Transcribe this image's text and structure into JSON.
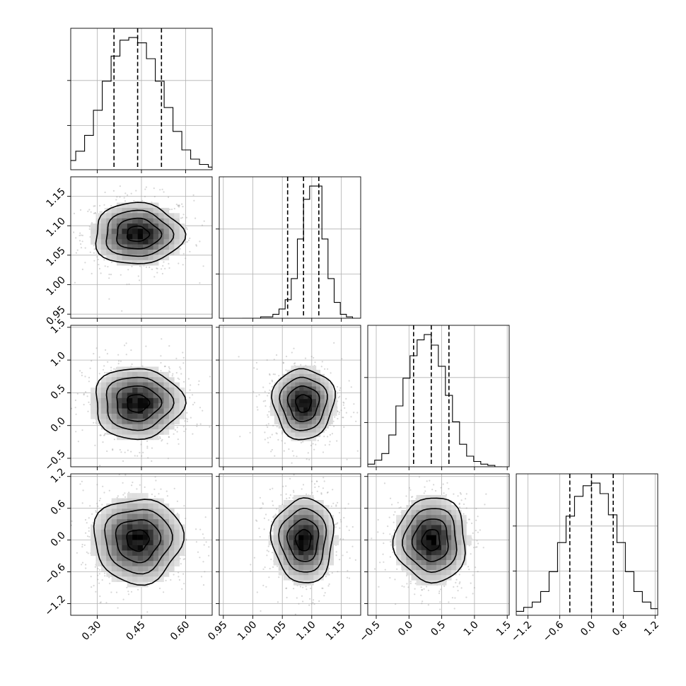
{
  "chart_data": {
    "type": "corner",
    "parameters": 4,
    "grid": true,
    "quantile_lines": "dashed",
    "axes": [
      {
        "range": [
          0.21,
          0.69
        ],
        "ticks": [
          0.3,
          0.45,
          0.6
        ],
        "tick_labels": [
          "0.30",
          "0.45",
          "0.60"
        ]
      },
      {
        "range": [
          0.943,
          1.183
        ],
        "ticks": [
          0.95,
          1.0,
          1.05,
          1.1,
          1.15
        ],
        "tick_labels": [
          "0.95",
          "1.00",
          "1.05",
          "1.10",
          "1.15"
        ]
      },
      {
        "range": [
          -0.63,
          1.53
        ],
        "ticks": [
          -0.5,
          0.0,
          0.5,
          1.0,
          1.5
        ],
        "tick_labels": [
          "−0.5",
          "0.0",
          "0.5",
          "1.0",
          "1.5"
        ]
      },
      {
        "range": [
          -1.42,
          1.25
        ],
        "ticks": [
          -1.2,
          -0.6,
          0.0,
          0.6,
          1.2
        ],
        "tick_labels": [
          "−1.2",
          "−0.6",
          "0.0",
          "0.6",
          "1.2"
        ]
      }
    ],
    "distributions": [
      {
        "mean": 0.437,
        "std": 0.075,
        "quantiles": [
          0.357,
          0.437,
          0.518
        ]
      },
      {
        "mean": 1.086,
        "std": 0.026,
        "quantiles": [
          1.059,
          1.086,
          1.112
        ]
      },
      {
        "mean": 0.34,
        "std": 0.27,
        "quantiles": [
          0.07,
          0.34,
          0.61
        ]
      },
      {
        "mean": 0.0,
        "std": 0.4,
        "quantiles": [
          -0.41,
          0.0,
          0.41
        ]
      }
    ],
    "histograms": [
      {
        "bins": 20,
        "counts": [
          1,
          3,
          7,
          14,
          26,
          45,
          67,
          86,
          98,
          100,
          96,
          84,
          67,
          47,
          29,
          15,
          8,
          4,
          2,
          1
        ]
      },
      {
        "bins": 20,
        "counts": [
          0,
          0,
          0,
          1,
          1,
          3,
          7,
          14,
          30,
          60,
          90,
          100,
          100,
          60,
          30,
          12,
          3,
          1,
          0,
          0
        ]
      },
      {
        "bins": 20,
        "counts": [
          1,
          2,
          5,
          10,
          24,
          46,
          67,
          84,
          96,
          100,
          92,
          76,
          54,
          34,
          17,
          8,
          4,
          2,
          1,
          0
        ]
      },
      {
        "bins": 20,
        "counts": [
          1,
          3,
          6,
          10,
          18,
          33,
          55,
          75,
          90,
          98,
          100,
          92,
          76,
          55,
          33,
          18,
          10,
          5,
          3,
          1
        ]
      }
    ]
  }
}
